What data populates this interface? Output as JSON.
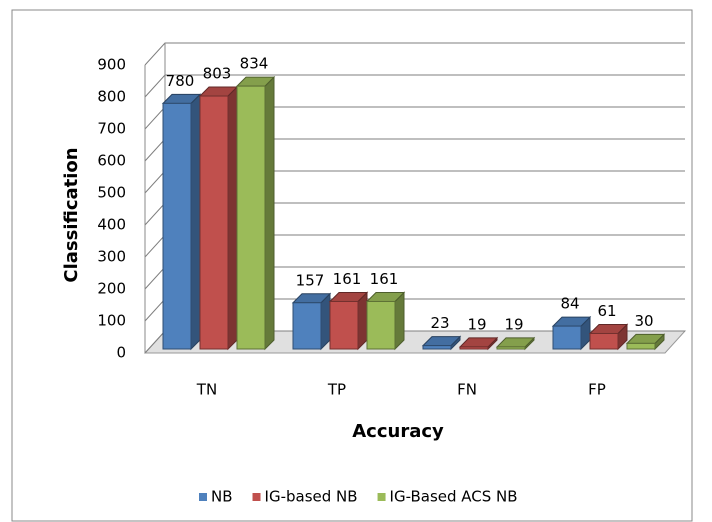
{
  "chart_data": {
    "type": "bar3d",
    "categories": [
      "TN",
      "TP",
      "FN",
      "FP"
    ],
    "series": [
      {
        "name": "NB",
        "color": "#4f81bd",
        "values": [
          780,
          157,
          23,
          84
        ]
      },
      {
        "name": "IG-based NB",
        "color": "#c0504d",
        "values": [
          803,
          161,
          19,
          61
        ]
      },
      {
        "name": "IG-Based ACS NB",
        "color": "#9bbb59",
        "values": [
          834,
          161,
          19,
          30
        ]
      }
    ],
    "xlabel": "Accuracy",
    "ylabel": "Classification",
    "ylim": [
      0,
      900
    ],
    "yticks": [
      0,
      100,
      200,
      300,
      400,
      500,
      600,
      700,
      800,
      900
    ],
    "grid": true,
    "legend": "bottom"
  }
}
